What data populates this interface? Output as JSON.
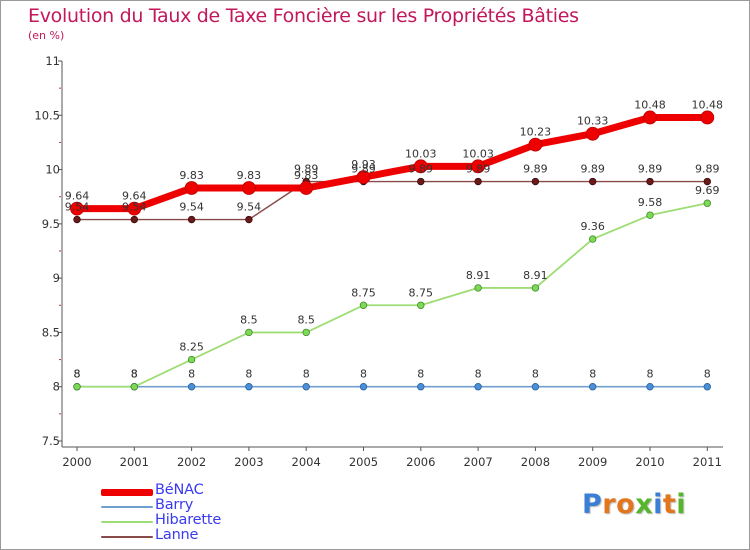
{
  "title": "Evolution du Taux de Taxe Foncière sur les Propriétés Bâties",
  "subtitle": "(en %)",
  "logo": {
    "text": "Proxiti",
    "letters": [
      "P",
      "r",
      "o",
      "x",
      "i",
      "t",
      "i"
    ],
    "colors": [
      "#3a7fd5",
      "#e3751c",
      "#e3751c",
      "#56b62b",
      "#3a7fd5",
      "#e3751c",
      "#56b62b"
    ]
  },
  "chart_data": {
    "type": "line",
    "x": [
      "2000",
      "2001",
      "2002",
      "2003",
      "2004",
      "2005",
      "2006",
      "2007",
      "2008",
      "2009",
      "2010",
      "2011"
    ],
    "ylim": [
      7.5,
      11
    ],
    "yticks": [
      "7.5",
      "8",
      "8.5",
      "9",
      "9.5",
      "10",
      "10.5",
      "11"
    ],
    "grid": false,
    "legend_position": "bottom-left",
    "series": [
      {
        "name": "BéNAC",
        "color": "#ee0000",
        "values": [
          9.64,
          9.64,
          9.83,
          9.83,
          9.83,
          9.93,
          10.03,
          10.03,
          10.23,
          10.33,
          10.48,
          10.48
        ],
        "labels": [
          "9.64",
          "9.64",
          "9.83",
          "9.83",
          "9.83",
          "9.93",
          "10.03",
          "10.03",
          "10.23",
          "10.33",
          "10.48",
          "10.48"
        ]
      },
      {
        "name": "Barry",
        "color": "#6fa0d0",
        "values": [
          8,
          8,
          8,
          8,
          8,
          8,
          8,
          8,
          8,
          8,
          8,
          8
        ],
        "labels": [
          "8",
          "8",
          "8",
          "8",
          "8",
          "8",
          "8",
          "8",
          "8",
          "8",
          "8",
          "8"
        ]
      },
      {
        "name": "Hibarette",
        "color": "#9edd74",
        "values": [
          8,
          8,
          8.25,
          8.5,
          8.5,
          8.75,
          8.75,
          8.91,
          8.91,
          9.36,
          9.58,
          9.69
        ],
        "labels": [
          "8",
          "8",
          "8.25",
          "8.5",
          "8.5",
          "8.75",
          "8.75",
          "8.91",
          "8.91",
          "9.36",
          "9.58",
          "9.69"
        ]
      },
      {
        "name": "Lanne",
        "color": "#8a4a4a",
        "values": [
          9.54,
          9.54,
          9.54,
          9.54,
          9.89,
          9.89,
          9.89,
          9.89,
          9.89,
          9.89,
          9.89,
          9.89
        ],
        "labels": [
          "9.54",
          "9.54",
          "9.54",
          "9.54",
          "9.89",
          "9.89",
          "9.89",
          "9.89",
          "9.89",
          "9.89",
          "9.89",
          "9.89"
        ]
      }
    ]
  }
}
